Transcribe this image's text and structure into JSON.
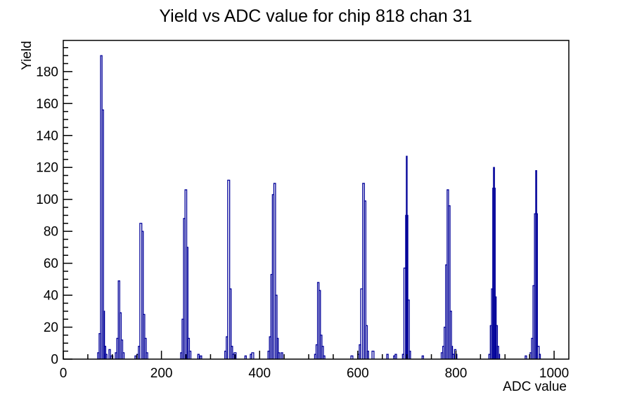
{
  "title": "Yield vs ADC value for chip 818 chan 31",
  "colors": {
    "histogram_line": "#000099",
    "axis": "#000000",
    "background": "#ffffff"
  },
  "chart_data": {
    "type": "histogram",
    "title": "Yield vs ADC value for chip 818 chan 31",
    "xlabel": "ADC value",
    "ylabel": "Yield",
    "xlim": [
      0,
      1030
    ],
    "ylim": [
      0,
      199.5
    ],
    "grid": false,
    "legend": false,
    "x_major_ticks": [
      0,
      200,
      400,
      600,
      800,
      1000
    ],
    "x_minor_step": 50,
    "y_major_ticks": [
      0,
      20,
      40,
      60,
      80,
      100,
      120,
      140,
      160,
      180
    ],
    "y_minor_step": 5,
    "line_color": "#000099",
    "peaks": [
      {
        "adc": 78,
        "yield": 190
      },
      {
        "adc": 114,
        "yield": 49
      },
      {
        "adc": 158,
        "yield": 85
      },
      {
        "adc": 250,
        "yield": 106
      },
      {
        "adc": 337,
        "yield": 112
      },
      {
        "adc": 431,
        "yield": 110
      },
      {
        "adc": 520,
        "yield": 48
      },
      {
        "adc": 612,
        "yield": 110
      },
      {
        "adc": 700,
        "yield": 127
      },
      {
        "adc": 784,
        "yield": 106
      },
      {
        "adc": 877,
        "yield": 120
      },
      {
        "adc": 963,
        "yield": 118
      }
    ],
    "bars": [
      [
        70,
        73,
        4
      ],
      [
        73,
        76,
        16
      ],
      [
        76,
        79,
        190
      ],
      [
        79,
        82,
        156
      ],
      [
        82,
        84,
        30
      ],
      [
        84,
        86.5,
        8
      ],
      [
        86.5,
        89,
        3
      ],
      [
        93,
        96,
        6
      ],
      [
        97,
        101,
        2
      ],
      [
        106,
        109,
        4
      ],
      [
        109,
        112,
        13
      ],
      [
        112,
        115,
        49
      ],
      [
        115,
        118,
        29
      ],
      [
        118,
        121,
        12
      ],
      [
        121,
        124,
        4
      ],
      [
        146,
        149,
        2
      ],
      [
        150,
        153,
        3
      ],
      [
        153,
        156,
        8
      ],
      [
        156,
        160,
        85
      ],
      [
        160,
        163,
        80
      ],
      [
        163,
        166,
        28
      ],
      [
        166,
        169,
        13
      ],
      [
        169,
        172,
        4
      ],
      [
        239,
        242,
        4
      ],
      [
        242,
        245,
        25
      ],
      [
        245,
        248,
        88
      ],
      [
        248,
        251.5,
        106
      ],
      [
        251.5,
        254,
        70
      ],
      [
        254,
        257,
        13
      ],
      [
        257,
        260,
        5
      ],
      [
        274,
        277,
        3
      ],
      [
        279,
        282,
        2
      ],
      [
        329,
        332,
        5
      ],
      [
        332,
        335,
        14
      ],
      [
        335,
        339,
        112
      ],
      [
        339,
        342,
        44
      ],
      [
        342,
        345,
        8
      ],
      [
        345,
        348,
        3
      ],
      [
        348,
        352,
        4
      ],
      [
        370,
        373,
        2
      ],
      [
        381,
        384,
        3
      ],
      [
        384,
        388,
        4
      ],
      [
        417,
        420,
        5
      ],
      [
        420,
        423,
        14
      ],
      [
        423,
        426,
        53
      ],
      [
        426,
        429,
        103
      ],
      [
        429,
        432.5,
        110
      ],
      [
        432.5,
        435.5,
        40
      ],
      [
        435.5,
        438,
        13
      ],
      [
        438,
        441,
        4
      ],
      [
        444,
        447,
        4
      ],
      [
        512,
        515,
        3
      ],
      [
        515,
        518,
        9
      ],
      [
        518,
        521,
        48
      ],
      [
        521,
        524,
        43
      ],
      [
        524,
        527,
        15
      ],
      [
        527,
        530,
        8
      ],
      [
        530,
        533,
        2
      ],
      [
        586,
        590,
        2
      ],
      [
        600,
        603,
        3
      ],
      [
        603,
        606,
        9
      ],
      [
        606,
        610,
        44
      ],
      [
        610,
        613.5,
        110
      ],
      [
        613.5,
        616.5,
        99
      ],
      [
        616.5,
        619.5,
        21
      ],
      [
        619.5,
        622,
        5
      ],
      [
        629,
        633,
        5
      ],
      [
        659,
        662,
        3
      ],
      [
        673,
        676,
        2
      ],
      [
        676,
        679,
        3
      ],
      [
        691,
        694,
        3
      ],
      [
        694,
        697.5,
        57
      ],
      [
        697.5,
        702,
        90
      ],
      [
        699,
        700.5,
        127
      ],
      [
        702,
        705,
        37
      ],
      [
        705,
        707.5,
        5
      ],
      [
        731,
        734,
        2
      ],
      [
        770,
        773,
        4
      ],
      [
        773,
        776,
        8
      ],
      [
        776,
        779,
        20
      ],
      [
        779,
        782,
        59
      ],
      [
        782,
        785,
        106
      ],
      [
        785,
        788,
        96
      ],
      [
        788,
        791,
        30
      ],
      [
        791,
        793,
        8
      ],
      [
        793,
        796,
        3
      ],
      [
        797,
        800,
        6
      ],
      [
        800,
        802,
        3
      ],
      [
        867,
        870,
        3
      ],
      [
        870,
        872.5,
        21
      ],
      [
        872.5,
        875,
        44
      ],
      [
        875,
        880,
        107
      ],
      [
        876.5,
        878.5,
        120
      ],
      [
        880,
        882,
        39
      ],
      [
        882,
        884.5,
        21
      ],
      [
        884.5,
        887,
        8
      ],
      [
        887,
        889,
        3
      ],
      [
        941,
        944,
        2
      ],
      [
        951,
        954,
        4
      ],
      [
        954,
        957,
        13
      ],
      [
        957,
        960,
        46
      ],
      [
        960,
        966,
        91
      ],
      [
        962.5,
        964.5,
        118
      ],
      [
        966,
        969.5,
        8
      ],
      [
        969.5,
        972,
        3
      ]
    ]
  }
}
